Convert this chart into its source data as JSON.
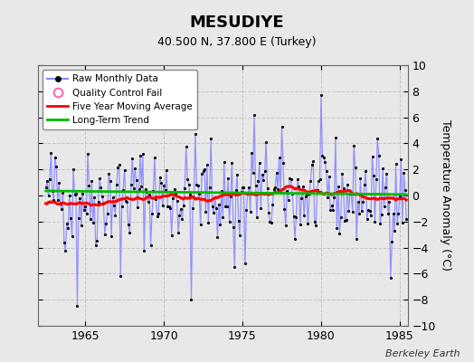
{
  "title": "MESUDIYE",
  "subtitle": "40.500 N, 37.800 E (Turkey)",
  "ylabel": "Temperature Anomaly (°C)",
  "watermark": "Berkeley Earth",
  "xlim": [
    1962.0,
    1985.5
  ],
  "ylim": [
    -10,
    10
  ],
  "yticks": [
    -10,
    -8,
    -6,
    -4,
    -2,
    0,
    2,
    4,
    6,
    8,
    10
  ],
  "xticks": [
    1965,
    1970,
    1975,
    1980,
    1985
  ],
  "fig_bg_color": "#e8e8e8",
  "plot_bg_color": "#e8e8e8",
  "grid_color": "#c0c0c0",
  "raw_line_color": "#8888ff",
  "raw_marker_color": "#000000",
  "moving_avg_color": "#ff0000",
  "trend_color": "#00bb00",
  "qc_fail_color": "#ff69b4",
  "seed": 42,
  "n_years": 23,
  "start_year": 1962.5
}
